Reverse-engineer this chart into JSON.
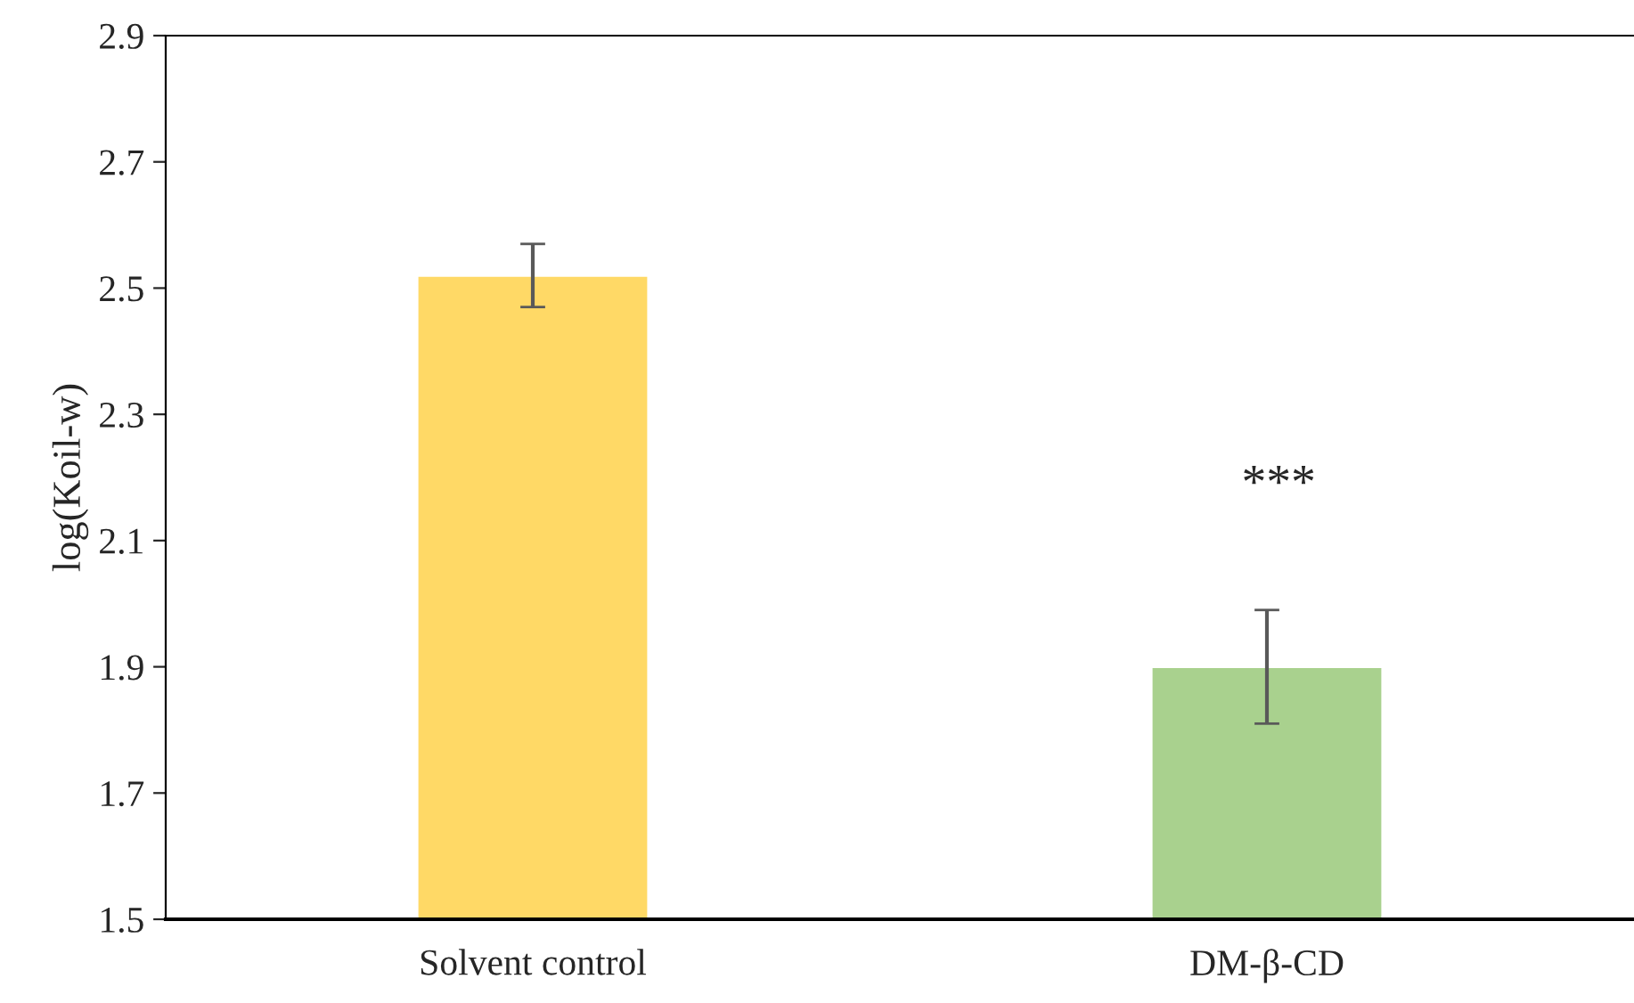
{
  "chart_data": {
    "type": "bar",
    "ylabel": "log(Koil-w)",
    "categories": [
      "Solvent control",
      "DM-β-CD"
    ],
    "values": [
      2.52,
      1.9
    ],
    "colors": [
      "#ffd966",
      "#a9d18e"
    ],
    "errors": [
      0.05,
      0.09
    ],
    "ylim": [
      1.5,
      2.9
    ],
    "yticks": [
      1.5,
      1.7,
      1.9,
      2.1,
      2.3,
      2.5,
      2.7,
      2.9
    ],
    "grid": false,
    "legend": false,
    "annotations": [
      "***"
    ]
  }
}
